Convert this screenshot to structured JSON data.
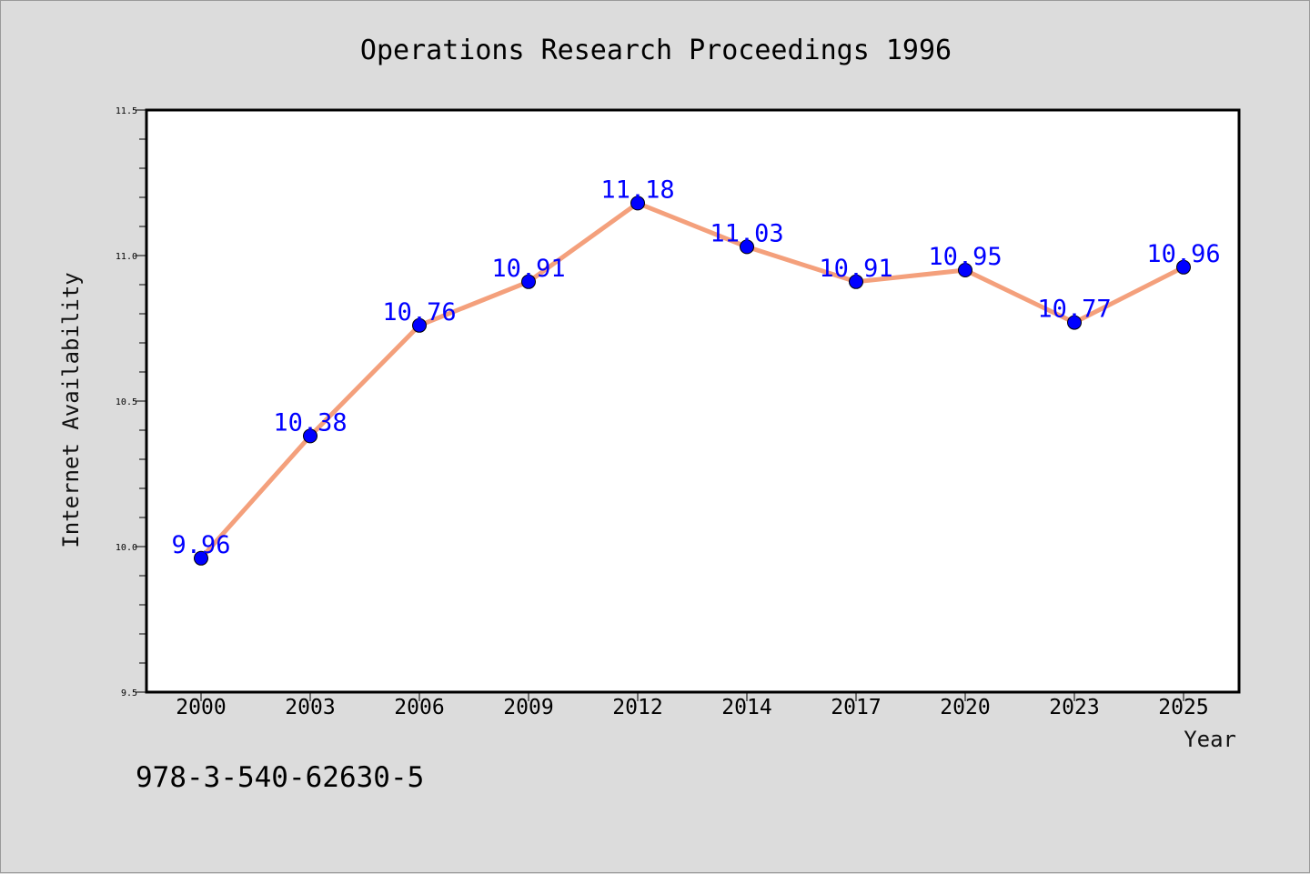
{
  "chart_data": {
    "type": "line",
    "title": "Operations Research Proceedings 1996",
    "xlabel": "Year",
    "ylabel": "Internet Availability",
    "categories": [
      "2000",
      "2003",
      "2006",
      "2009",
      "2012",
      "2014",
      "2017",
      "2020",
      "2023",
      "2025"
    ],
    "series": [
      {
        "values": [
          9.96,
          10.38,
          10.76,
          10.91,
          11.18,
          11.03,
          10.91,
          10.95,
          10.77,
          10.96
        ],
        "labels": [
          "9.96",
          "10.38",
          "10.76",
          "10.91",
          "11.18",
          "11.03",
          "10.91",
          "10.95",
          "10.77",
          "10.96"
        ],
        "line_color": "#f4a07c",
        "marker_color": "#0000ff"
      }
    ],
    "ylim": [
      9.5,
      11.5
    ],
    "yticks": [
      "9.5",
      "10.0",
      "10.5",
      "11.0",
      "11.5"
    ],
    "grid": false,
    "legend": "none"
  },
  "footer_text": "978-3-540-62630-5",
  "colors": {
    "background": "#dcdcdc",
    "plot_background": "#ffffff",
    "label_color": "#0000ff"
  }
}
